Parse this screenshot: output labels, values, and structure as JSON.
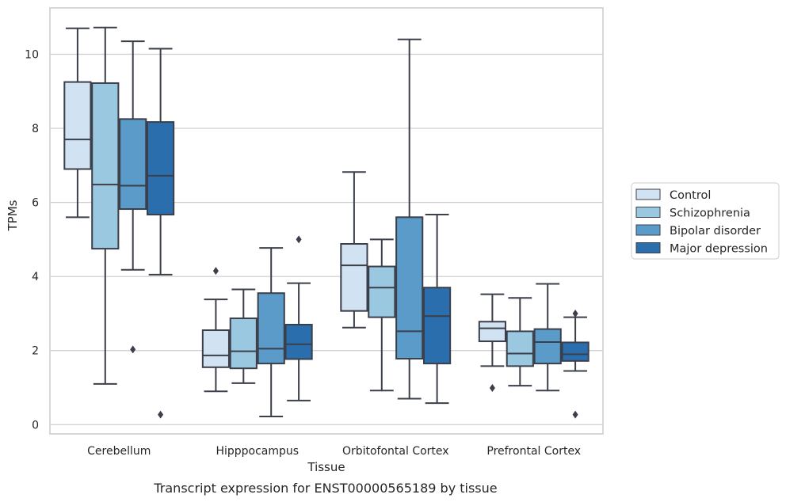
{
  "chart_data": {
    "type": "box",
    "xlabel": "Tissue",
    "ylabel": "TPMs",
    "caption": "Transcript expression for ENST00000565189 by tissue",
    "ylim": [
      -0.25,
      11.25
    ],
    "yticks": [
      0,
      2,
      4,
      6,
      8,
      10
    ],
    "grid": "horizontal",
    "legend_placement": "right",
    "categories": [
      "Cerebellum",
      "Hipppocampus",
      "Orbitofontal Cortex",
      "Prefrontal Cortex"
    ],
    "series": [
      {
        "name": "Control",
        "color": "#d1e2f2",
        "boxes": [
          {
            "whislo": 5.6,
            "q1": 6.9,
            "med": 7.7,
            "q3": 9.25,
            "whishi": 10.7,
            "fliers": []
          },
          {
            "whislo": 0.9,
            "q1": 1.55,
            "med": 1.87,
            "q3": 2.55,
            "whishi": 3.38,
            "fliers": [
              4.15
            ]
          },
          {
            "whislo": 2.62,
            "q1": 3.07,
            "med": 4.3,
            "q3": 4.88,
            "whishi": 6.82,
            "fliers": []
          },
          {
            "whislo": 1.58,
            "q1": 2.25,
            "med": 2.6,
            "q3": 2.78,
            "whishi": 3.52,
            "fliers": [
              0.99
            ]
          }
        ]
      },
      {
        "name": "Schizophrenia",
        "color": "#9ac8e0",
        "boxes": [
          {
            "whislo": 1.1,
            "q1": 4.75,
            "med": 6.48,
            "q3": 9.22,
            "whishi": 10.72,
            "fliers": []
          },
          {
            "whislo": 1.12,
            "q1": 1.52,
            "med": 1.98,
            "q3": 2.87,
            "whishi": 3.65,
            "fliers": []
          },
          {
            "whislo": 0.92,
            "q1": 2.9,
            "med": 3.7,
            "q3": 4.27,
            "whishi": 5.0,
            "fliers": []
          },
          {
            "whislo": 1.05,
            "q1": 1.58,
            "med": 1.92,
            "q3": 2.52,
            "whishi": 3.42,
            "fliers": []
          }
        ]
      },
      {
        "name": "Bipolar disorder",
        "color": "#5b9bc9",
        "boxes": [
          {
            "whislo": 4.18,
            "q1": 5.82,
            "med": 6.45,
            "q3": 8.25,
            "whishi": 10.35,
            "fliers": [
              2.03
            ]
          },
          {
            "whislo": 0.22,
            "q1": 1.65,
            "med": 2.05,
            "q3": 3.55,
            "whishi": 4.77,
            "fliers": []
          },
          {
            "whislo": 0.7,
            "q1": 1.78,
            "med": 2.52,
            "q3": 5.6,
            "whishi": 10.4,
            "fliers": []
          },
          {
            "whislo": 0.92,
            "q1": 1.65,
            "med": 2.23,
            "q3": 2.58,
            "whishi": 3.8,
            "fliers": []
          }
        ]
      },
      {
        "name": "Major depression",
        "color": "#2b6eae",
        "boxes": [
          {
            "whislo": 4.05,
            "q1": 5.67,
            "med": 6.72,
            "q3": 8.17,
            "whishi": 10.15,
            "fliers": [
              0.27
            ]
          },
          {
            "whislo": 0.65,
            "q1": 1.77,
            "med": 2.17,
            "q3": 2.7,
            "whishi": 3.82,
            "fliers": [
              5.0
            ]
          },
          {
            "whislo": 0.58,
            "q1": 1.65,
            "med": 2.93,
            "q3": 3.7,
            "whishi": 5.67,
            "fliers": []
          },
          {
            "whislo": 1.45,
            "q1": 1.72,
            "med": 1.9,
            "q3": 2.22,
            "whishi": 2.9,
            "fliers": [
              0.27,
              3.0
            ]
          }
        ]
      }
    ]
  }
}
